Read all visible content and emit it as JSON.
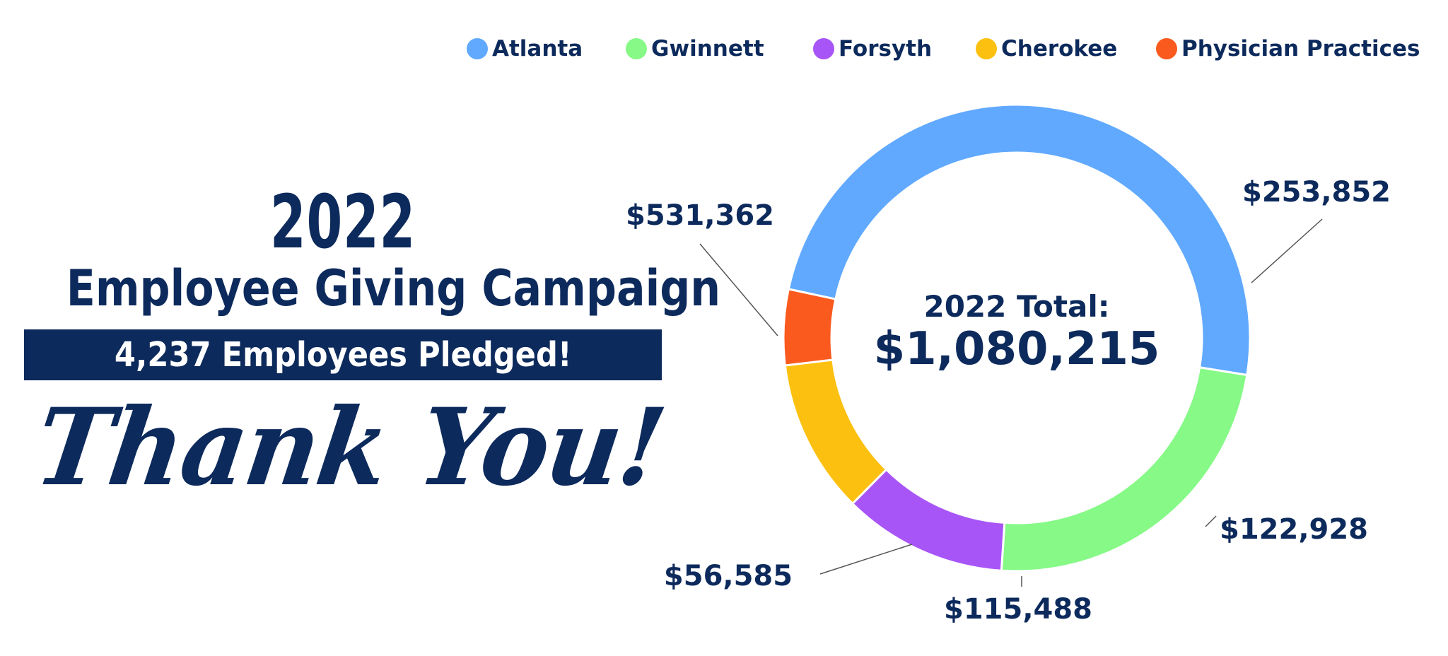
{
  "heading": {
    "year": "2022",
    "title": "Employee Giving Campaign",
    "pledged": "4,237 Employees Pledged!",
    "thanks": "Thank You!"
  },
  "chart_data": {
    "type": "pie",
    "donut": true,
    "center_label": "2022 Total:",
    "center_value": "$1,080,215",
    "legend_position": "top",
    "categories": [
      "Atlanta",
      "Gwinnett",
      "Forsyth",
      "Cherokee",
      "Physician Practices"
    ],
    "values": [
      531362,
      253852,
      122928,
      115488,
      56585
    ],
    "value_labels": [
      "$531,362",
      "$253,852",
      "$122,928",
      "$115,488",
      "$56,585"
    ],
    "colors": [
      "#60a9ff",
      "#86f986",
      "#a855f7",
      "#fcc010",
      "#fa5a1e"
    ]
  }
}
